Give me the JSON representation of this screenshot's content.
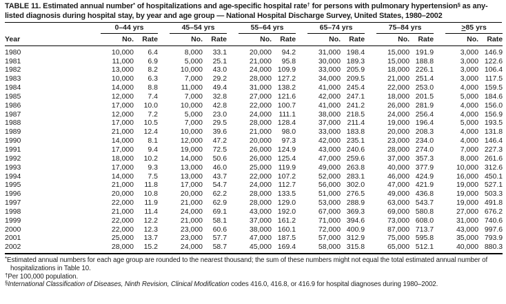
{
  "title": {
    "part1": "TABLE 11. Estimated annual number",
    "sup1": "*",
    "part2": " of hospitalizations and age-specific hospital rate",
    "sup2": "†",
    "part3": " for persons with pulmonary hypertension",
    "sup3": "§",
    "part4": " as any-listed diagnosis during hospital stay, by year and age group — National Hospital Discharge Survey, United States, 1980–2002"
  },
  "header": {
    "year_label": "Year",
    "sub": [
      "No.",
      "Rate"
    ],
    "groups": [
      {
        "sym": "",
        "label": "0–44 yrs"
      },
      {
        "sym": "",
        "label": "45–54 yrs"
      },
      {
        "sym": "",
        "label": "55–64 yrs"
      },
      {
        "sym": "",
        "label": "65–74 yrs"
      },
      {
        "sym": "",
        "label": "75–84 yrs"
      },
      {
        "sym": ">",
        "label": "85 yrs"
      }
    ]
  },
  "rows": [
    {
      "year": "1980",
      "values": [
        "10,000",
        "6.4",
        "8,000",
        "33.1",
        "20,000",
        "94.2",
        "31,000",
        "198.4",
        "15,000",
        "191.9",
        "3,000",
        "146.9"
      ]
    },
    {
      "year": "1981",
      "values": [
        "11,000",
        "6.9",
        "5,000",
        "25.1",
        "21,000",
        "95.8",
        "30,000",
        "189.3",
        "15,000",
        "188.8",
        "3,000",
        "122.6"
      ]
    },
    {
      "year": "1982",
      "values": [
        "13,000",
        "8.2",
        "10,000",
        "43.0",
        "24,000",
        "109.9",
        "33,000",
        "205.9",
        "18,000",
        "226.1",
        "3,000",
        "106.4"
      ]
    },
    {
      "year": "1983",
      "values": [
        "10,000",
        "6.3",
        "7,000",
        "29.2",
        "28,000",
        "127.2",
        "34,000",
        "209.5",
        "21,000",
        "251.4",
        "3,000",
        "117.5"
      ]
    },
    {
      "year": "1984",
      "values": [
        "14,000",
        "8.8",
        "11,000",
        "49.4",
        "31,000",
        "138.2",
        "41,000",
        "245.4",
        "22,000",
        "253.0",
        "4,000",
        "159.5"
      ]
    },
    {
      "year": "1985",
      "values": [
        "12,000",
        "7.4",
        "7,000",
        "32.8",
        "27,000",
        "121.6",
        "42,000",
        "247.1",
        "18,000",
        "201.5",
        "5,000",
        "184.6"
      ]
    },
    {
      "year": "1986",
      "values": [
        "17,000",
        "10.0",
        "10,000",
        "42.8",
        "22,000",
        "100.7",
        "41,000",
        "241.2",
        "26,000",
        "281.9",
        "4,000",
        "156.0"
      ]
    },
    {
      "year": "1987",
      "values": [
        "12,000",
        "7.2",
        "5,000",
        "23.0",
        "24,000",
        "111.1",
        "38,000",
        "218.5",
        "24,000",
        "256.4",
        "4,000",
        "156.9"
      ]
    },
    {
      "year": "1988",
      "values": [
        "17,000",
        "10.5",
        "7,000",
        "29.5",
        "28,000",
        "128.4",
        "37,000",
        "211.4",
        "19,000",
        "196.4",
        "5,000",
        "193.5"
      ]
    },
    {
      "year": "1989",
      "values": [
        "21,000",
        "12.4",
        "10,000",
        "39.6",
        "21,000",
        "98.0",
        "33,000",
        "183.8",
        "20,000",
        "208.3",
        "4,000",
        "131.8"
      ]
    },
    {
      "year": "1990",
      "values": [
        "14,000",
        "8.1",
        "12,000",
        "47.2",
        "20,000",
        "97.3",
        "42,000",
        "235.1",
        "23,000",
        "234.0",
        "4,000",
        "146.4"
      ]
    },
    {
      "year": "1991",
      "values": [
        "17,000",
        "9.4",
        "19,000",
        "72.5",
        "26,000",
        "124.9",
        "43,000",
        "240.6",
        "28,000",
        "274.0",
        "7,000",
        "227.3"
      ]
    },
    {
      "year": "1992",
      "values": [
        "18,000",
        "10.2",
        "14,000",
        "50.6",
        "26,000",
        "125.4",
        "47,000",
        "259.6",
        "37,000",
        "357.3",
        "8,000",
        "261.6"
      ]
    },
    {
      "year": "1993",
      "values": [
        "17,000",
        "9.3",
        "13,000",
        "46.0",
        "25,000",
        "119.9",
        "49,000",
        "263.8",
        "40,000",
        "377.9",
        "10,000",
        "312.6"
      ]
    },
    {
      "year": "1994",
      "values": [
        "14,000",
        "7.5",
        "13,000",
        "43.7",
        "22,000",
        "107.2",
        "52,000",
        "283.1",
        "46,000",
        "424.9",
        "16,000",
        "450.1"
      ]
    },
    {
      "year": "1995",
      "values": [
        "21,000",
        "11.8",
        "17,000",
        "54.7",
        "24,000",
        "112.7",
        "56,000",
        "302.0",
        "47,000",
        "421.9",
        "19,000",
        "527.1"
      ]
    },
    {
      "year": "1996",
      "values": [
        "20,000",
        "10.8",
        "20,000",
        "62.2",
        "28,000",
        "133.5",
        "51,000",
        "276.5",
        "49,000",
        "436.8",
        "19,000",
        "503.3"
      ]
    },
    {
      "year": "1997",
      "values": [
        "22,000",
        "11.9",
        "21,000",
        "62.9",
        "28,000",
        "129.0",
        "53,000",
        "288.9",
        "63,000",
        "543.7",
        "19,000",
        "491.8"
      ]
    },
    {
      "year": "1998",
      "values": [
        "21,000",
        "11.4",
        "24,000",
        "69.1",
        "43,000",
        "192.0",
        "67,000",
        "369.3",
        "69,000",
        "580.8",
        "27,000",
        "676.2"
      ]
    },
    {
      "year": "1999",
      "values": [
        "22,000",
        "12.2",
        "21,000",
        "58.1",
        "37,000",
        "161.2",
        "71,000",
        "394.6",
        "73,000",
        "608.0",
        "31,000",
        "740.6"
      ]
    },
    {
      "year": "2000",
      "values": [
        "22,000",
        "12.3",
        "23,000",
        "60.6",
        "38,000",
        "160.1",
        "72,000",
        "400.9",
        "87,000",
        "713.7",
        "43,000",
        "997.6"
      ]
    },
    {
      "year": "2001",
      "values": [
        "25,000",
        "13.7",
        "23,000",
        "57.7",
        "47,000",
        "187.5",
        "57,000",
        "312.9",
        "75,000",
        "595.8",
        "35,000",
        "793.9"
      ]
    },
    {
      "year": "2002",
      "values": [
        "28,000",
        "15.2",
        "24,000",
        "58.7",
        "45,000",
        "169.4",
        "58,000",
        "315.8",
        "65,000",
        "512.1",
        "40,000",
        "880.3"
      ]
    }
  ],
  "footnotes": [
    {
      "marker": "*",
      "italic": "",
      "text": "Estimated annual numbers for each age group are rounded to the nearest thousand; the sum of these numbers might not equal the total estimated annual number of hospitalizations in Table 10."
    },
    {
      "marker": "†",
      "italic": "",
      "text": "Per 100,000 population."
    },
    {
      "marker": "§",
      "italic": "International Classification of Diseases, Ninth Revision, Clinical Modification",
      "text": " codes 416.0, 416.8, or 416.9 for hospital diagnoses during 1980–2002."
    }
  ]
}
